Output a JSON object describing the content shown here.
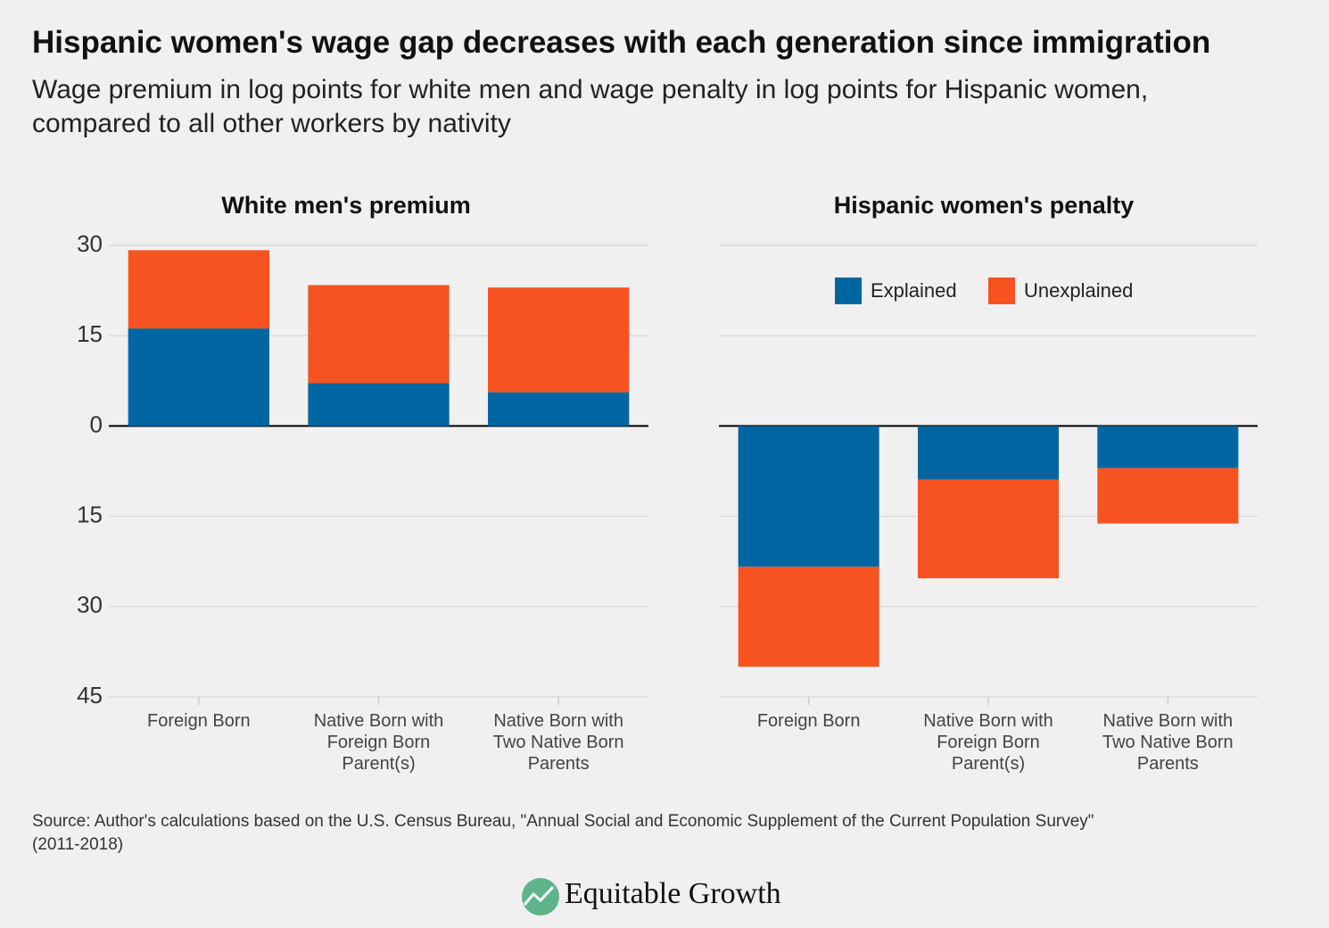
{
  "title": "Hispanic women's wage gap decreases with each generation since immigration",
  "subtitle": "Wage premium in log points for white men and wage penalty in log points for Hispanic women,\ncompared to all other workers by nativity",
  "source": "Source: Author's calculations based on the U.S. Census Bureau, \"Annual Social and Economic Supplement of the Current Population Survey\"\n(2011-2018)",
  "logo": "Equitable Growth",
  "chart_data": [
    {
      "type": "bar",
      "stacked": true,
      "title": "White men's premium",
      "categories": [
        "Foreign Born",
        "Native Born with\nForeign Born\nParent(s)",
        "Native Born with\nTwo Native Born\nParents"
      ],
      "series": [
        {
          "color": "#0066a1",
          "values": [
            16.2,
            7.1,
            5.6
          ]
        },
        {
          "color": "#f65321",
          "values": [
            13.0,
            16.3,
            17.4
          ]
        }
      ],
      "ylim": [
        -45,
        30
      ],
      "yticks": [
        {
          "value": -45,
          "label": "45"
        },
        {
          "value": -30,
          "label": "30"
        },
        {
          "value": -15,
          "label": "15"
        },
        0,
        15,
        30
      ],
      "grid": true
    },
    {
      "type": "bar",
      "stacked": true,
      "title": "Hispanic women's penalty",
      "categories": [
        "Foreign Born",
        "Native Born with\nForeign Born\nParent(s)",
        "Native Born with\nTwo Native Born\nParents"
      ],
      "series": [
        {
          "name": "Explained",
          "color": "#0066a1",
          "values": [
            -23.4,
            -8.9,
            -7.0
          ]
        },
        {
          "name": "Unexplained",
          "color": "#f65321",
          "values": [
            -16.6,
            -16.4,
            -9.2
          ]
        }
      ],
      "ylim": [
        -45,
        30
      ],
      "yticks": [
        -45,
        -30,
        -15,
        0,
        15,
        30
      ],
      "ytick_labels": false,
      "grid": true,
      "legend": "top"
    }
  ]
}
